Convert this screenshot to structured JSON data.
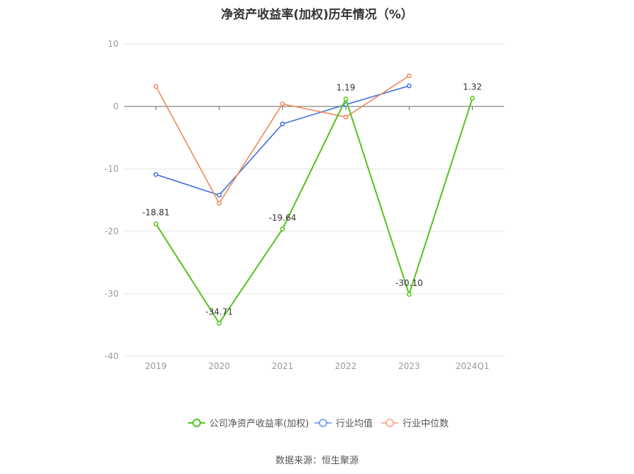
{
  "title": "净资产收益率(加权)历年情况（%）",
  "source": "数据来源：恒生聚源",
  "chart_data": {
    "type": "line",
    "categories": [
      "2019",
      "2020",
      "2021",
      "2022",
      "2023",
      "2024Q1"
    ],
    "ylim": [
      -40,
      10
    ],
    "yticks": [
      10,
      0,
      -10,
      -20,
      -30,
      -40
    ],
    "grid": true,
    "legend_position": "bottom",
    "series": [
      {
        "name": "公司净资产收益率(加权)",
        "color": "#52c41a",
        "values": [
          -18.81,
          -34.71,
          -19.64,
          1.19,
          -30.1,
          1.32
        ],
        "labels": [
          "-18.81",
          "-34.71",
          "-19.64",
          "1.19",
          "-30.10",
          "1.32"
        ]
      },
      {
        "name": "行业均值",
        "color": "#3b6fdb",
        "values": [
          -10.9,
          -14.2,
          -2.8,
          0.3,
          3.3,
          null
        ]
      },
      {
        "name": "行业中位数",
        "color": "#f0875a",
        "values": [
          3.2,
          -15.5,
          0.4,
          -1.7,
          4.9,
          null
        ]
      }
    ]
  }
}
